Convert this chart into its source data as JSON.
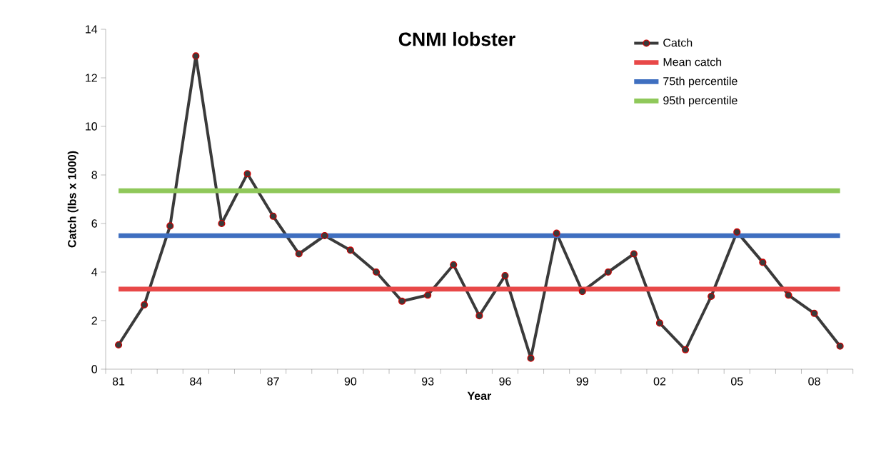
{
  "chart_data": {
    "type": "line",
    "title": "CNMI lobster",
    "xlabel": "Year",
    "ylabel": "Catch (lbs x 1000)",
    "categories": [
      "81",
      null,
      null,
      "84",
      null,
      null,
      "87",
      null,
      null,
      "90",
      null,
      null,
      "93",
      null,
      null,
      "96",
      null,
      null,
      "99",
      null,
      null,
      "02",
      null,
      null,
      "05",
      null,
      null,
      "08",
      null
    ],
    "ylim": [
      0,
      14
    ],
    "yticks": [
      0,
      2,
      4,
      6,
      8,
      10,
      12,
      14
    ],
    "legend": "top right",
    "series": [
      {
        "name": "Catch",
        "color": "#3a3a3a",
        "marker": "circle",
        "values": [
          1.0,
          2.65,
          5.9,
          12.9,
          6.0,
          8.05,
          6.3,
          4.75,
          5.5,
          4.9,
          4.0,
          2.8,
          3.05,
          4.3,
          2.2,
          3.85,
          0.45,
          5.6,
          3.2,
          4.0,
          4.75,
          1.9,
          0.8,
          3.0,
          5.65,
          4.4,
          3.05,
          2.3,
          0.95
        ]
      },
      {
        "name": "Mean catch",
        "color": "#e84848",
        "marker": "none",
        "values": [
          3.3,
          3.3,
          3.3,
          3.3,
          3.3,
          3.3,
          3.3,
          3.3,
          3.3,
          3.3,
          3.3,
          3.3,
          3.3,
          3.3,
          3.3,
          3.3,
          3.3,
          3.3,
          3.3,
          3.3,
          3.3,
          3.3,
          3.3,
          3.3,
          3.3,
          3.3,
          3.3,
          3.3,
          3.3
        ]
      },
      {
        "name": "75th percentile",
        "color": "#3f6fc0",
        "marker": "none",
        "values": [
          5.5,
          5.5,
          5.5,
          5.5,
          5.5,
          5.5,
          5.5,
          5.5,
          5.5,
          5.5,
          5.5,
          5.5,
          5.5,
          5.5,
          5.5,
          5.5,
          5.5,
          5.5,
          5.5,
          5.5,
          5.5,
          5.5,
          5.5,
          5.5,
          5.5,
          5.5,
          5.5,
          5.5,
          5.5
        ]
      },
      {
        "name": "95th percentile",
        "color": "#8fc85a",
        "marker": "none",
        "values": [
          7.35,
          7.35,
          7.35,
          7.35,
          7.35,
          7.35,
          7.35,
          7.35,
          7.35,
          7.35,
          7.35,
          7.35,
          7.35,
          7.35,
          7.35,
          7.35,
          7.35,
          7.35,
          7.35,
          7.35,
          7.35,
          7.35,
          7.35,
          7.35,
          7.35,
          7.35,
          7.35,
          7.35,
          7.35
        ]
      }
    ]
  }
}
